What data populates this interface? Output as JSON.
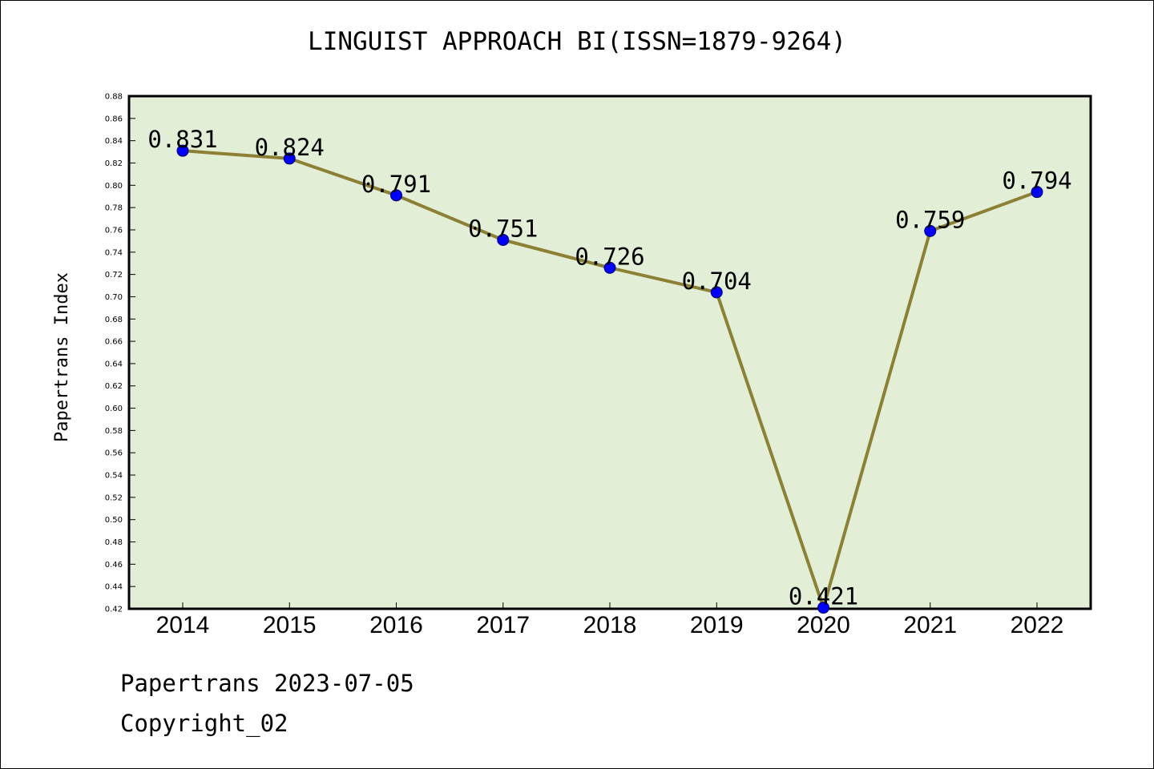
{
  "chart_data": {
    "type": "line",
    "title": "LINGUIST APPROACH BI(ISSN=1879-9264)",
    "xlabel": "",
    "ylabel": "Papertrans Index",
    "categories": [
      "2014",
      "2015",
      "2016",
      "2017",
      "2018",
      "2019",
      "2020",
      "2021",
      "2022"
    ],
    "values": [
      0.831,
      0.824,
      0.791,
      0.751,
      0.726,
      0.704,
      0.421,
      0.759,
      0.794
    ],
    "data_labels": [
      "0.831",
      "0.824",
      "0.791",
      "0.751",
      "0.726",
      "0.704",
      "0.421",
      "0.759",
      "0.794"
    ],
    "ylim": [
      0.42,
      0.88
    ],
    "y_ticks": [
      "0.42",
      "0.44",
      "0.46",
      "0.48",
      "0.50",
      "0.52",
      "0.54",
      "0.56",
      "0.58",
      "0.60",
      "0.62",
      "0.64",
      "0.66",
      "0.68",
      "0.70",
      "0.72",
      "0.74",
      "0.76",
      "0.78",
      "0.80",
      "0.82",
      "0.84",
      "0.86",
      "0.88"
    ],
    "grid": false,
    "colors": {
      "plot_background": "#e2efd6",
      "line": "#8b8034",
      "marker": "#0000ff"
    }
  },
  "footer": {
    "line1": "Papertrans 2023-07-05",
    "line2": "Copyright_02"
  }
}
